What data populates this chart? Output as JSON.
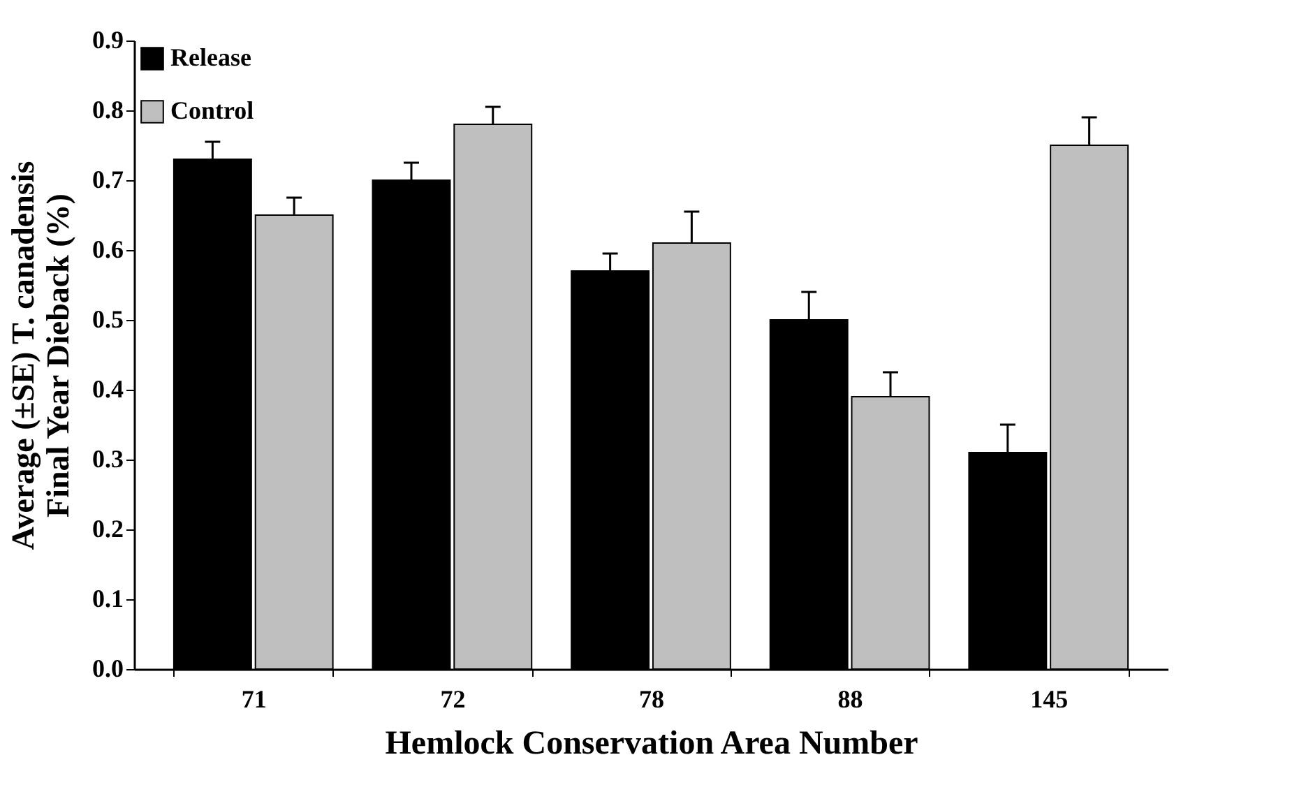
{
  "chart_data": {
    "type": "bar",
    "xlabel": "Hemlock Conservation Area Number",
    "ylabel": "Average (±SE) T. canadensis Final Year Dieback (%)",
    "categories": [
      "71",
      "72",
      "78",
      "88",
      "145"
    ],
    "series": [
      {
        "name": "Release",
        "color": "#000000",
        "values": [
          0.73,
          0.7,
          0.57,
          0.5,
          0.31
        ],
        "errors": [
          0.025,
          0.025,
          0.025,
          0.04,
          0.04
        ]
      },
      {
        "name": "Control",
        "color": "#bfbfbf",
        "values": [
          0.65,
          0.78,
          0.61,
          0.39,
          0.75
        ],
        "errors": [
          0.025,
          0.025,
          0.045,
          0.035,
          0.04
        ]
      }
    ],
    "ylim": [
      0,
      0.9
    ],
    "yticks": [
      {
        "value": 0,
        "label": "0.0"
      },
      0.1,
      0.2,
      0.3,
      0.4,
      0.5,
      0.6,
      0.7,
      0.8,
      0.9
    ],
    "legend": "top left",
    "grid": false
  }
}
